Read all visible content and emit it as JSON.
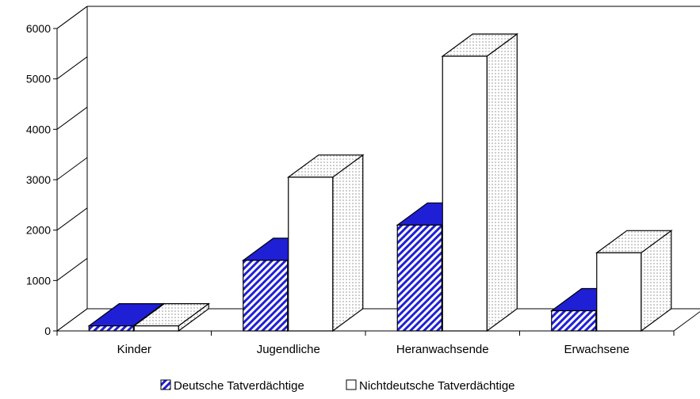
{
  "colors": {
    "deutsche": "#1f1fd6",
    "deutsche_hatch_bg": "#ffffff",
    "nichtdeutsche_front": "#ffffff",
    "nichtdeutsche_side": "#e6e6e6",
    "axis": "#000000"
  },
  "chart_data": {
    "type": "bar",
    "style": "3d-clustered",
    "title": "",
    "xlabel": "",
    "ylabel": "",
    "categories": [
      "Kinder",
      "Jugendliche",
      "Heranwachsende",
      "Erwachsene"
    ],
    "series": [
      {
        "name": "Deutsche Tatverdächtige",
        "values": [
          100,
          1400,
          2100,
          400
        ]
      },
      {
        "name": "Nichtdeutsche Tatverdächtige",
        "values": [
          100,
          3050,
          5450,
          1550
        ]
      }
    ],
    "ylim": [
      0,
      6000
    ],
    "yticks": [
      "0",
      "1000",
      "2000",
      "3000",
      "4000",
      "5000",
      "6000"
    ],
    "grid": false,
    "legend": "bottom"
  }
}
